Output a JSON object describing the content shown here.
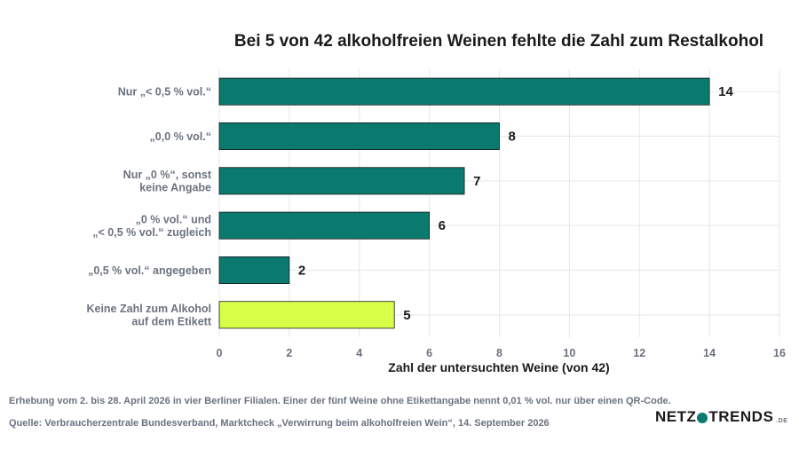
{
  "chart_data": {
    "type": "bar",
    "orientation": "horizontal",
    "title": "Bei 5 von 42 alkoholfreien Weinen fehlte die Zahl zum Restalkohol",
    "xlabel": "Zahl der untersuchten Weine (von 42)",
    "xlim": [
      0,
      16
    ],
    "xticks": [
      "0",
      "2",
      "4",
      "6",
      "8",
      "10",
      "12",
      "14",
      "16"
    ],
    "grid": true,
    "categories": [
      [
        "Nur „< 0,5 % vol.“"
      ],
      [
        "„0,0 % vol.“"
      ],
      [
        "Nur „0 %“, sonst",
        "keine Angabe"
      ],
      [
        "„0 % vol.“ und",
        "„< 0,5 % vol.“ zugleich"
      ],
      [
        "„0,5 % vol.“ angegeben"
      ],
      [
        "Keine Zahl zum Alkohol",
        "auf dem Etikett"
      ]
    ],
    "values": [
      14,
      8,
      7,
      6,
      2,
      5
    ],
    "value_labels": [
      "14",
      "8",
      "7",
      "6",
      "2",
      "5"
    ],
    "colors": {
      "default": "#0b7a6e",
      "highlight": "#d7ff47",
      "highlight_index": 5
    }
  },
  "footer": {
    "note": "Erhebung vom 2. bis 28. April 2026 in vier Berliner Filialen. Einer der fünf Weine ohne Etikettangabe nennt 0,01 % vol. nur über einen QR-Code.",
    "source": "Quelle: Verbraucherzentrale Bundesverband, Marktcheck „Verwirrung beim alkoholfreien Wein“, 14. September 2026"
  },
  "logo": {
    "left": "NETZ",
    "right": "TRENDS",
    "tld": ".DE"
  }
}
